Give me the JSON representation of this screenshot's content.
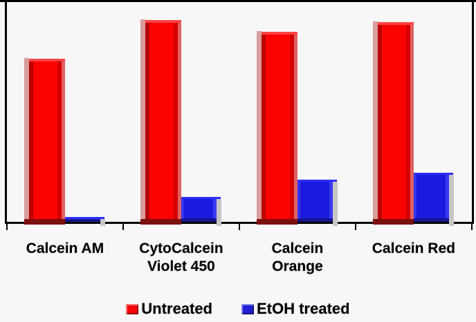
{
  "chart_data": {
    "type": "bar",
    "categories": [
      "Calcein AM",
      "CytoCalcein Violet 450",
      "Calcein Orange",
      "Calcein Red"
    ],
    "category_labels": [
      "Calcein AM",
      "CytoCalcein\nViolet 450",
      "Calcein\nOrange",
      "Calcein Red"
    ],
    "series": [
      {
        "name": "Untreated",
        "color": "#f50505",
        "values": [
          0.742,
          0.918,
          0.865,
          0.909
        ]
      },
      {
        "name": "EtOH treated",
        "color": "#2020d5",
        "values": [
          0.022,
          0.113,
          0.192,
          0.223
        ]
      }
    ],
    "title": "",
    "xlabel": "",
    "ylabel": "",
    "ylim": [
      0,
      1
    ],
    "y_axis_labeled": false,
    "grid": false,
    "legend_position": "bottom"
  },
  "colors": {
    "background": "#f7f7f7",
    "frame": "#000000",
    "untreated_bar": "#fb0303",
    "etoh_bar": "#1b1be0",
    "text": "#000000"
  }
}
